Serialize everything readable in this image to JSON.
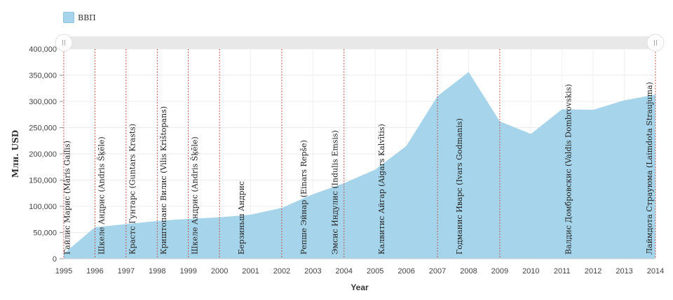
{
  "chart_data": {
    "type": "area",
    "title": "",
    "legend": [
      {
        "label": "ВВП",
        "color": "#a6d4ea"
      }
    ],
    "legend_placement": "top-left",
    "xlabel": "Year",
    "ylabel": "Млн. USD",
    "xlim": [
      1995,
      2014
    ],
    "ylim": [
      0,
      400000
    ],
    "yticks": [
      0,
      50000,
      100000,
      150000,
      200000,
      250000,
      300000,
      350000,
      400000
    ],
    "ytick_labels": [
      "0",
      "50,000",
      "100,000",
      "150,000",
      "200,000",
      "250,000",
      "300,000",
      "350,000",
      "400,000"
    ],
    "x": [
      1995,
      1996,
      1997,
      1998,
      1999,
      2000,
      2001,
      2002,
      2003,
      2004,
      2005,
      2006,
      2007,
      2008,
      2009,
      2010,
      2011,
      2012,
      2013,
      2014
    ],
    "xtick_labels": [
      "1995",
      "1996",
      "1997",
      "1998",
      "1999",
      "2000",
      "2001",
      "2002",
      "2003",
      "2004",
      "2005",
      "2006",
      "2007",
      "2008",
      "2009",
      "2010",
      "2011",
      "2012",
      "2013",
      "2014"
    ],
    "series": [
      {
        "name": "ВВП",
        "values": [
          10000,
          60000,
          66000,
          72000,
          76000,
          79000,
          84000,
          97000,
          123000,
          144000,
          170000,
          215000,
          310000,
          356000,
          262000,
          238000,
          285000,
          284000,
          302000,
          313000
        ]
      }
    ],
    "grid": true,
    "event_lines": [
      1995,
      1996,
      1997,
      1998,
      1999,
      2000,
      2002,
      2004,
      2007,
      2009,
      2014
    ],
    "annotations": [
      {
        "x": 1995.1,
        "text": "Гайлис Марис (Māris Gailis)"
      },
      {
        "x": 1996.2,
        "text": "Шкеле Андрис (Andris Šķēle)"
      },
      {
        "x": 1997.2,
        "text": "Крастс Гунтарс (Guntars Krasts)"
      },
      {
        "x": 1998.2,
        "text": "Криштопанс Вилис (Vilis Krištopans)"
      },
      {
        "x": 1999.2,
        "text": "Шкеле Андрис (Andris Šķēle)"
      },
      {
        "x": 2000.7,
        "text": "Берзиньш Андрис"
      },
      {
        "x": 2002.7,
        "text": "Репше Эйнар (Einars Repše)"
      },
      {
        "x": 2003.7,
        "text": "Эмсис Индулис (Indulis Emsis)"
      },
      {
        "x": 2005.2,
        "text": "Калвитис Айгар (Aigars Kalvītis)"
      },
      {
        "x": 2007.7,
        "text": "Годманис Иварс (Ivars Godmanis)"
      },
      {
        "x": 2011.2,
        "text": "Валдис Домбровскис (Valdis Dombrovskis)"
      },
      {
        "x": 2013.8,
        "text": "Лаймдота Страуюма (Laimdota Straujuma)"
      }
    ],
    "range_slider": [
      1995,
      2014
    ]
  }
}
